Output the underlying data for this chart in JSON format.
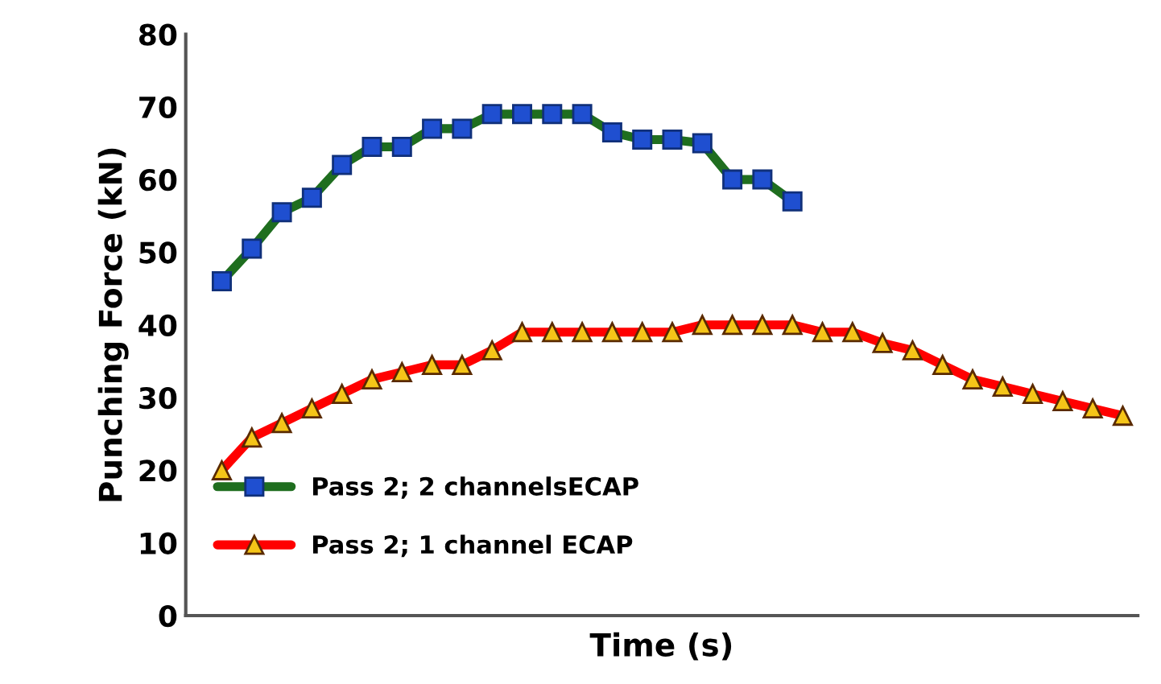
{
  "chart_data": {
    "type": "line",
    "xlabel": "Time (s)",
    "ylabel": "Punching Force (kN)",
    "categories": [
      null,
      null,
      null,
      null,
      null,
      null,
      null,
      null,
      null,
      null,
      null,
      null,
      null,
      null,
      null,
      null,
      null,
      null,
      null,
      null,
      null,
      null,
      null,
      null,
      null,
      null,
      null,
      null,
      null,
      null,
      null
    ],
    "series": [
      {
        "name": "Pass 2; 2 channelsECAP",
        "color": "#1f6e1f",
        "marker": "square",
        "values": [
          46,
          50.5,
          55.5,
          57.5,
          62,
          64.5,
          64.5,
          67,
          67,
          69,
          69,
          69,
          69,
          66.5,
          65.5,
          65.5,
          65,
          60,
          60,
          57,
          null,
          null,
          null,
          null,
          null,
          null,
          null,
          null,
          null,
          null,
          null
        ]
      },
      {
        "name": "Pass 2; 1 channel ECAP",
        "color": "#ff0000",
        "marker": "triangle",
        "values": [
          20,
          24.5,
          26.5,
          28.5,
          30.5,
          32.5,
          33.5,
          34.5,
          34.5,
          36.5,
          39,
          39,
          39,
          39,
          39,
          39,
          40,
          40,
          40,
          40,
          39,
          39,
          37.5,
          36.5,
          34.5,
          32.5,
          31.5,
          30.5,
          29.5,
          28.5,
          27.5
        ]
      }
    ],
    "ylim": [
      0,
      80
    ],
    "yticks": [
      0,
      10,
      20,
      30,
      40,
      50,
      60,
      70,
      80
    ],
    "grid": false,
    "legend": "bottom left"
  }
}
